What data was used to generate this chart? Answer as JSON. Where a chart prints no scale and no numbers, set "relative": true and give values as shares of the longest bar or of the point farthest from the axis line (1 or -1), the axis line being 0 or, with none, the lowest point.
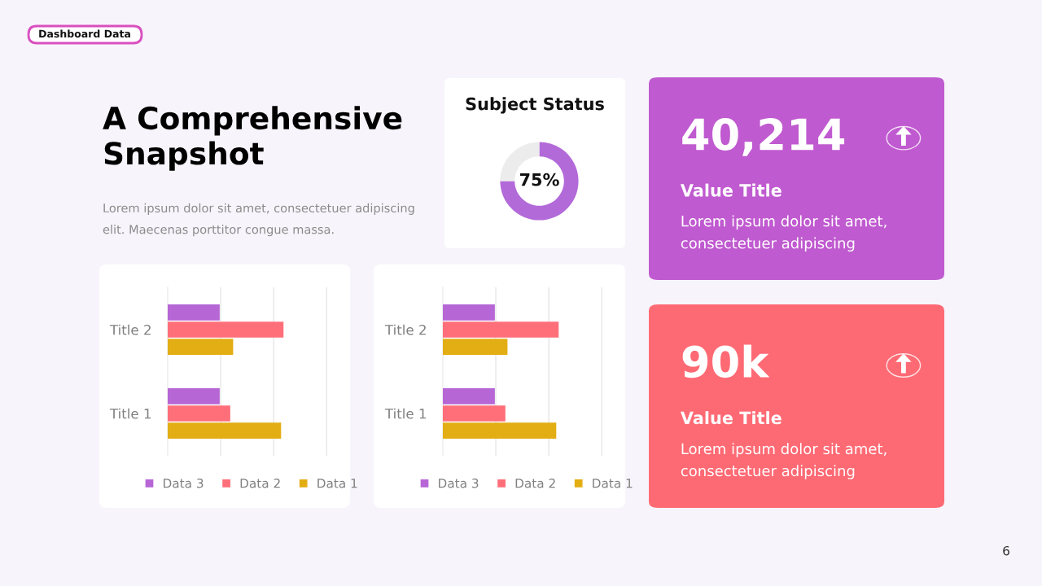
{
  "chart_data": [
    {
      "type": "other",
      "title": "A Comprehensive\nSnapshot",
      "subtitle": "Dashboard Data",
      "annotations": [
        "Lorem ipsum dolor sit amet, consectetuer adipiscing\nelit. Maecenas porttitor congue massa.",
        "6"
      ]
    },
    {
      "type": "donut",
      "title": "Subject Status",
      "categories": [
        null,
        null
      ],
      "values": [
        75,
        25
      ],
      "colors": [
        "#b36ad9",
        "#ececec"
      ],
      "value_labels": [
        "75%",
        null
      ]
    },
    {
      "type": "bar",
      "orientation": "horizontal",
      "relative": true,
      "categories": [
        "Title 2",
        "Title 1"
      ],
      "legend": "bottom",
      "tick_labels": "y",
      "ref_lines": [
        {
          "axis": "x",
          "value": 0.457,
          "color": "#e6e6e6"
        },
        {
          "axis": "x",
          "value": 0.915,
          "color": "#e6e6e6"
        },
        {
          "axis": "x",
          "value": 1.372,
          "color": "#e6e6e6"
        }
      ],
      "series": [
        {
          "name": "Data 3",
          "color": "#b766d6",
          "values": [
            0.449,
            0.449
          ]
        },
        {
          "name": "Data 2",
          "color": "#ff6f7a",
          "values": [
            1,
            0.54
          ]
        },
        {
          "name": "Data 1",
          "color": "#e3ae14",
          "values": [
            0.565,
            0.979
          ]
        }
      ]
    },
    {
      "type": "bar",
      "orientation": "horizontal",
      "relative": true,
      "categories": [
        "Title 2",
        "Title 1"
      ],
      "legend": "bottom",
      "tick_labels": "y",
      "ref_lines": [
        {
          "axis": "x",
          "value": 0.457,
          "color": "#e6e6e6"
        },
        {
          "axis": "x",
          "value": 0.915,
          "color": "#e6e6e6"
        },
        {
          "axis": "x",
          "value": 1.372,
          "color": "#e6e6e6"
        }
      ],
      "series": [
        {
          "name": "Data 3",
          "color": "#b766d6",
          "values": [
            0.449,
            0.449
          ]
        },
        {
          "name": "Data 2",
          "color": "#ff6f7a",
          "values": [
            1,
            0.54
          ]
        },
        {
          "name": "Data 1",
          "color": "#e3ae14",
          "values": [
            0.558,
            0.979
          ]
        }
      ]
    },
    {
      "type": "other",
      "title": "40,214",
      "subtitle": "Value Title",
      "annotations": [
        "Lorem ipsum dolor sit amet,\nconsectetuer adipiscing"
      ]
    },
    {
      "type": "other",
      "title": "90k",
      "subtitle": "Value Title",
      "annotations": [
        "Lorem ipsum dolor sit amet,\nconsectetuer adipiscing"
      ]
    }
  ]
}
